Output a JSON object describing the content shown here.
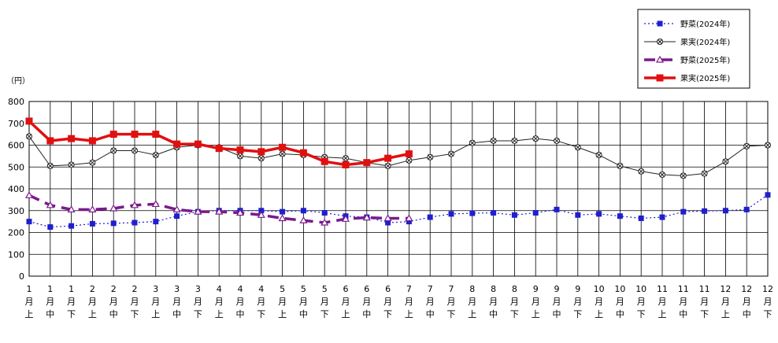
{
  "chart_data": {
    "type": "line",
    "unit_label": "（円）",
    "ylim": [
      0,
      800
    ],
    "y_ticks": [
      0,
      100,
      200,
      300,
      400,
      500,
      600,
      700,
      800
    ],
    "grid": true,
    "legend_position": "top-right",
    "categories": [
      [
        "1",
        "月",
        "上"
      ],
      [
        "1",
        "月",
        "中"
      ],
      [
        "1",
        "月",
        "下"
      ],
      [
        "2",
        "月",
        "上"
      ],
      [
        "2",
        "月",
        "中"
      ],
      [
        "2",
        "月",
        "下"
      ],
      [
        "3",
        "月",
        "上"
      ],
      [
        "3",
        "月",
        "中"
      ],
      [
        "3",
        "月",
        "下"
      ],
      [
        "4",
        "月",
        "上"
      ],
      [
        "4",
        "月",
        "中"
      ],
      [
        "4",
        "月",
        "下"
      ],
      [
        "5",
        "月",
        "上"
      ],
      [
        "5",
        "月",
        "中"
      ],
      [
        "5",
        "月",
        "下"
      ],
      [
        "6",
        "月",
        "上"
      ],
      [
        "6",
        "月",
        "中"
      ],
      [
        "6",
        "月",
        "下"
      ],
      [
        "7",
        "月",
        "上"
      ],
      [
        "7",
        "月",
        "中"
      ],
      [
        "7",
        "月",
        "下"
      ],
      [
        "8",
        "月",
        "上"
      ],
      [
        "8",
        "月",
        "中"
      ],
      [
        "8",
        "月",
        "下"
      ],
      [
        "9",
        "月",
        "上"
      ],
      [
        "9",
        "月",
        "中"
      ],
      [
        "9",
        "月",
        "下"
      ],
      [
        "10",
        "月",
        "上"
      ],
      [
        "10",
        "月",
        "中"
      ],
      [
        "10",
        "月",
        "下"
      ],
      [
        "11",
        "月",
        "上"
      ],
      [
        "11",
        "月",
        "中"
      ],
      [
        "11",
        "月",
        "下"
      ],
      [
        "12",
        "月",
        "上"
      ],
      [
        "12",
        "月",
        "中"
      ],
      [
        "12",
        "月",
        "下"
      ]
    ],
    "series": [
      {
        "name": "野菜(2024年)",
        "color": "#1f1fd0",
        "style": "dotted",
        "marker": "square",
        "values": [
          250,
          225,
          230,
          240,
          242,
          245,
          250,
          275,
          295,
          300,
          300,
          300,
          295,
          300,
          290,
          275,
          270,
          245,
          250,
          270,
          285,
          288,
          290,
          280,
          290,
          305,
          280,
          285,
          275,
          265,
          270,
          295,
          298,
          300,
          305,
          372
        ]
      },
      {
        "name": "果実(2024年)",
        "color": "#222222",
        "style": "solid-thin",
        "marker": "x-circle",
        "values": [
          640,
          505,
          510,
          520,
          575,
          575,
          555,
          590,
          600,
          590,
          550,
          540,
          560,
          555,
          545,
          540,
          520,
          505,
          530,
          545,
          560,
          610,
          620,
          620,
          630,
          620,
          590,
          555,
          505,
          480,
          465,
          460,
          470,
          525,
          595,
          600
        ]
      },
      {
        "name": "野菜(2025年)",
        "color": "#7b1a8c",
        "style": "dashed-thick",
        "marker": "triangle",
        "values": [
          370,
          325,
          305,
          305,
          310,
          325,
          330,
          305,
          295,
          295,
          290,
          280,
          265,
          255,
          245,
          262,
          268,
          265,
          265,
          null,
          null,
          null,
          null,
          null,
          null,
          null,
          null,
          null,
          null,
          null,
          null,
          null,
          null,
          null,
          null,
          null
        ]
      },
      {
        "name": "果実(2025年)",
        "color": "#e01010",
        "style": "solid-thick",
        "marker": "square",
        "values": [
          710,
          620,
          630,
          620,
          650,
          650,
          650,
          605,
          605,
          585,
          578,
          570,
          590,
          565,
          525,
          510,
          520,
          540,
          560,
          null,
          null,
          null,
          null,
          null,
          null,
          null,
          null,
          null,
          null,
          null,
          null,
          null,
          null,
          null,
          null,
          null
        ]
      }
    ]
  }
}
